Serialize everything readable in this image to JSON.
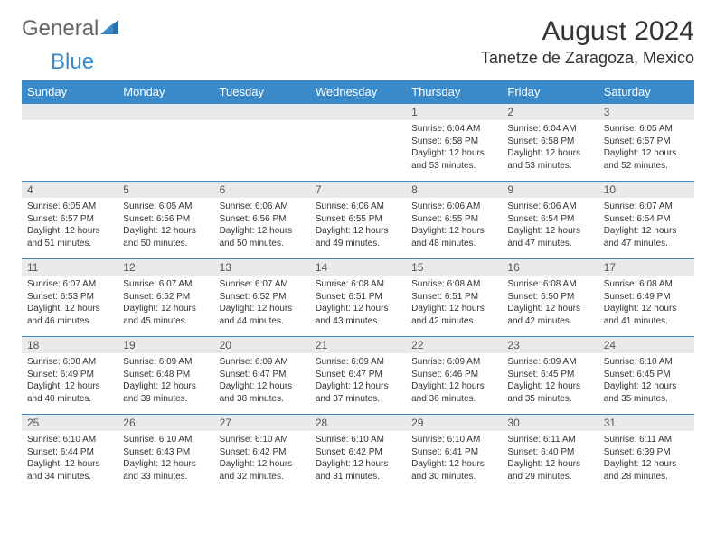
{
  "logo": {
    "word1": "General",
    "word2": "Blue"
  },
  "title": "August 2024",
  "location": "Tanetze de Zaragoza, Mexico",
  "colors": {
    "header_bg": "#3a8ac9",
    "header_text": "#ffffff",
    "day_strip_bg": "#e9eaeb",
    "border": "#3a8ac9",
    "logo_blue": "#3a8ac9"
  },
  "weekdays": [
    "Sunday",
    "Monday",
    "Tuesday",
    "Wednesday",
    "Thursday",
    "Friday",
    "Saturday"
  ],
  "weeks": [
    [
      null,
      null,
      null,
      null,
      {
        "n": "1",
        "sr": "Sunrise: 6:04 AM",
        "ss": "Sunset: 6:58 PM",
        "d1": "Daylight: 12 hours",
        "d2": "and 53 minutes."
      },
      {
        "n": "2",
        "sr": "Sunrise: 6:04 AM",
        "ss": "Sunset: 6:58 PM",
        "d1": "Daylight: 12 hours",
        "d2": "and 53 minutes."
      },
      {
        "n": "3",
        "sr": "Sunrise: 6:05 AM",
        "ss": "Sunset: 6:57 PM",
        "d1": "Daylight: 12 hours",
        "d2": "and 52 minutes."
      }
    ],
    [
      {
        "n": "4",
        "sr": "Sunrise: 6:05 AM",
        "ss": "Sunset: 6:57 PM",
        "d1": "Daylight: 12 hours",
        "d2": "and 51 minutes."
      },
      {
        "n": "5",
        "sr": "Sunrise: 6:05 AM",
        "ss": "Sunset: 6:56 PM",
        "d1": "Daylight: 12 hours",
        "d2": "and 50 minutes."
      },
      {
        "n": "6",
        "sr": "Sunrise: 6:06 AM",
        "ss": "Sunset: 6:56 PM",
        "d1": "Daylight: 12 hours",
        "d2": "and 50 minutes."
      },
      {
        "n": "7",
        "sr": "Sunrise: 6:06 AM",
        "ss": "Sunset: 6:55 PM",
        "d1": "Daylight: 12 hours",
        "d2": "and 49 minutes."
      },
      {
        "n": "8",
        "sr": "Sunrise: 6:06 AM",
        "ss": "Sunset: 6:55 PM",
        "d1": "Daylight: 12 hours",
        "d2": "and 48 minutes."
      },
      {
        "n": "9",
        "sr": "Sunrise: 6:06 AM",
        "ss": "Sunset: 6:54 PM",
        "d1": "Daylight: 12 hours",
        "d2": "and 47 minutes."
      },
      {
        "n": "10",
        "sr": "Sunrise: 6:07 AM",
        "ss": "Sunset: 6:54 PM",
        "d1": "Daylight: 12 hours",
        "d2": "and 47 minutes."
      }
    ],
    [
      {
        "n": "11",
        "sr": "Sunrise: 6:07 AM",
        "ss": "Sunset: 6:53 PM",
        "d1": "Daylight: 12 hours",
        "d2": "and 46 minutes."
      },
      {
        "n": "12",
        "sr": "Sunrise: 6:07 AM",
        "ss": "Sunset: 6:52 PM",
        "d1": "Daylight: 12 hours",
        "d2": "and 45 minutes."
      },
      {
        "n": "13",
        "sr": "Sunrise: 6:07 AM",
        "ss": "Sunset: 6:52 PM",
        "d1": "Daylight: 12 hours",
        "d2": "and 44 minutes."
      },
      {
        "n": "14",
        "sr": "Sunrise: 6:08 AM",
        "ss": "Sunset: 6:51 PM",
        "d1": "Daylight: 12 hours",
        "d2": "and 43 minutes."
      },
      {
        "n": "15",
        "sr": "Sunrise: 6:08 AM",
        "ss": "Sunset: 6:51 PM",
        "d1": "Daylight: 12 hours",
        "d2": "and 42 minutes."
      },
      {
        "n": "16",
        "sr": "Sunrise: 6:08 AM",
        "ss": "Sunset: 6:50 PM",
        "d1": "Daylight: 12 hours",
        "d2": "and 42 minutes."
      },
      {
        "n": "17",
        "sr": "Sunrise: 6:08 AM",
        "ss": "Sunset: 6:49 PM",
        "d1": "Daylight: 12 hours",
        "d2": "and 41 minutes."
      }
    ],
    [
      {
        "n": "18",
        "sr": "Sunrise: 6:08 AM",
        "ss": "Sunset: 6:49 PM",
        "d1": "Daylight: 12 hours",
        "d2": "and 40 minutes."
      },
      {
        "n": "19",
        "sr": "Sunrise: 6:09 AM",
        "ss": "Sunset: 6:48 PM",
        "d1": "Daylight: 12 hours",
        "d2": "and 39 minutes."
      },
      {
        "n": "20",
        "sr": "Sunrise: 6:09 AM",
        "ss": "Sunset: 6:47 PM",
        "d1": "Daylight: 12 hours",
        "d2": "and 38 minutes."
      },
      {
        "n": "21",
        "sr": "Sunrise: 6:09 AM",
        "ss": "Sunset: 6:47 PM",
        "d1": "Daylight: 12 hours",
        "d2": "and 37 minutes."
      },
      {
        "n": "22",
        "sr": "Sunrise: 6:09 AM",
        "ss": "Sunset: 6:46 PM",
        "d1": "Daylight: 12 hours",
        "d2": "and 36 minutes."
      },
      {
        "n": "23",
        "sr": "Sunrise: 6:09 AM",
        "ss": "Sunset: 6:45 PM",
        "d1": "Daylight: 12 hours",
        "d2": "and 35 minutes."
      },
      {
        "n": "24",
        "sr": "Sunrise: 6:10 AM",
        "ss": "Sunset: 6:45 PM",
        "d1": "Daylight: 12 hours",
        "d2": "and 35 minutes."
      }
    ],
    [
      {
        "n": "25",
        "sr": "Sunrise: 6:10 AM",
        "ss": "Sunset: 6:44 PM",
        "d1": "Daylight: 12 hours",
        "d2": "and 34 minutes."
      },
      {
        "n": "26",
        "sr": "Sunrise: 6:10 AM",
        "ss": "Sunset: 6:43 PM",
        "d1": "Daylight: 12 hours",
        "d2": "and 33 minutes."
      },
      {
        "n": "27",
        "sr": "Sunrise: 6:10 AM",
        "ss": "Sunset: 6:42 PM",
        "d1": "Daylight: 12 hours",
        "d2": "and 32 minutes."
      },
      {
        "n": "28",
        "sr": "Sunrise: 6:10 AM",
        "ss": "Sunset: 6:42 PM",
        "d1": "Daylight: 12 hours",
        "d2": "and 31 minutes."
      },
      {
        "n": "29",
        "sr": "Sunrise: 6:10 AM",
        "ss": "Sunset: 6:41 PM",
        "d1": "Daylight: 12 hours",
        "d2": "and 30 minutes."
      },
      {
        "n": "30",
        "sr": "Sunrise: 6:11 AM",
        "ss": "Sunset: 6:40 PM",
        "d1": "Daylight: 12 hours",
        "d2": "and 29 minutes."
      },
      {
        "n": "31",
        "sr": "Sunrise: 6:11 AM",
        "ss": "Sunset: 6:39 PM",
        "d1": "Daylight: 12 hours",
        "d2": "and 28 minutes."
      }
    ]
  ]
}
